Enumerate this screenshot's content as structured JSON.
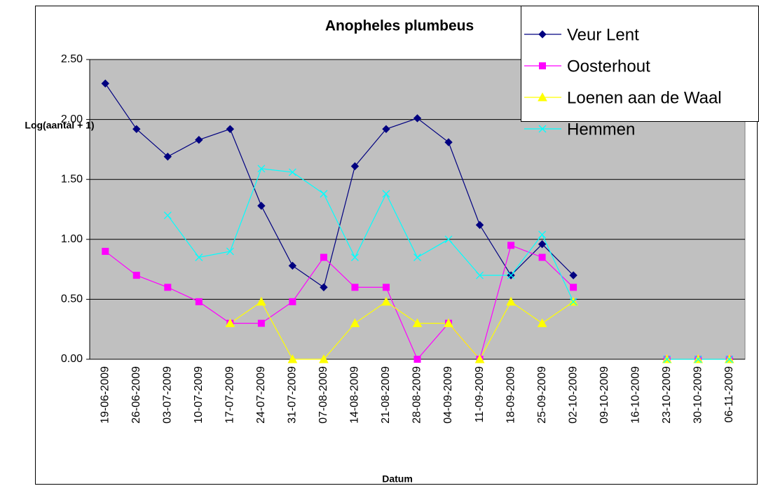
{
  "chart_data": {
    "type": "line",
    "title": "Anopheles plumbeus",
    "x_label": "Datum",
    "y_label": "Log(aantal + 1)",
    "categories": [
      "19-06-2009",
      "26-06-2009",
      "03-07-2009",
      "10-07-2009",
      "17-07-2009",
      "24-07-2009",
      "31-07-2009",
      "07-08-2009",
      "14-08-2009",
      "21-08-2009",
      "28-08-2009",
      "04-09-2009",
      "11-09-2009",
      "18-09-2009",
      "25-09-2009",
      "02-10-2009",
      "09-10-2009",
      "16-10-2009",
      "23-10-2009",
      "30-10-2009",
      "06-11-2009"
    ],
    "series": [
      {
        "name": "Veur Lent",
        "color": "#000080",
        "marker": "diamond",
        "values": [
          2.3,
          1.92,
          1.69,
          1.83,
          1.92,
          1.28,
          0.78,
          0.6,
          1.61,
          1.92,
          2.01,
          1.81,
          1.12,
          0.7,
          0.96,
          0.7,
          null,
          null,
          null,
          null,
          null
        ]
      },
      {
        "name": "Oosterhout",
        "color": "#FF00FF",
        "marker": "square",
        "values": [
          0.9,
          0.7,
          0.6,
          0.48,
          0.3,
          0.3,
          0.48,
          0.85,
          0.6,
          0.6,
          0.0,
          0.3,
          0.0,
          0.95,
          0.85,
          0.6,
          null,
          null,
          0,
          0,
          0
        ]
      },
      {
        "name": "Loenen aan de Waal",
        "color": "#FFFF00",
        "marker": "triangle",
        "values": [
          null,
          null,
          null,
          null,
          0.3,
          0.48,
          0,
          0,
          0.3,
          0.48,
          0.3,
          0.3,
          0,
          0.48,
          0.3,
          0.48,
          null,
          null,
          0,
          0,
          0
        ]
      },
      {
        "name": "Hemmen",
        "color": "#00FFFF",
        "marker": "x",
        "values": [
          null,
          null,
          1.2,
          0.85,
          0.9,
          1.59,
          1.56,
          1.38,
          0.85,
          1.38,
          0.85,
          1.0,
          0.7,
          0.7,
          1.04,
          0.48,
          null,
          null,
          0,
          0,
          0
        ]
      }
    ],
    "ylim": [
      0,
      2.5
    ],
    "yticks": [
      {
        "value": 0,
        "label": "0.00"
      },
      {
        "value": 0.5,
        "label": "0.50"
      },
      {
        "value": 1,
        "label": "1.00"
      },
      {
        "value": 1.5,
        "label": "1.50"
      },
      {
        "value": 2,
        "label": "2.00"
      },
      {
        "value": 2.5,
        "label": "2.50"
      }
    ],
    "grid": true,
    "legend": "top-right"
  }
}
